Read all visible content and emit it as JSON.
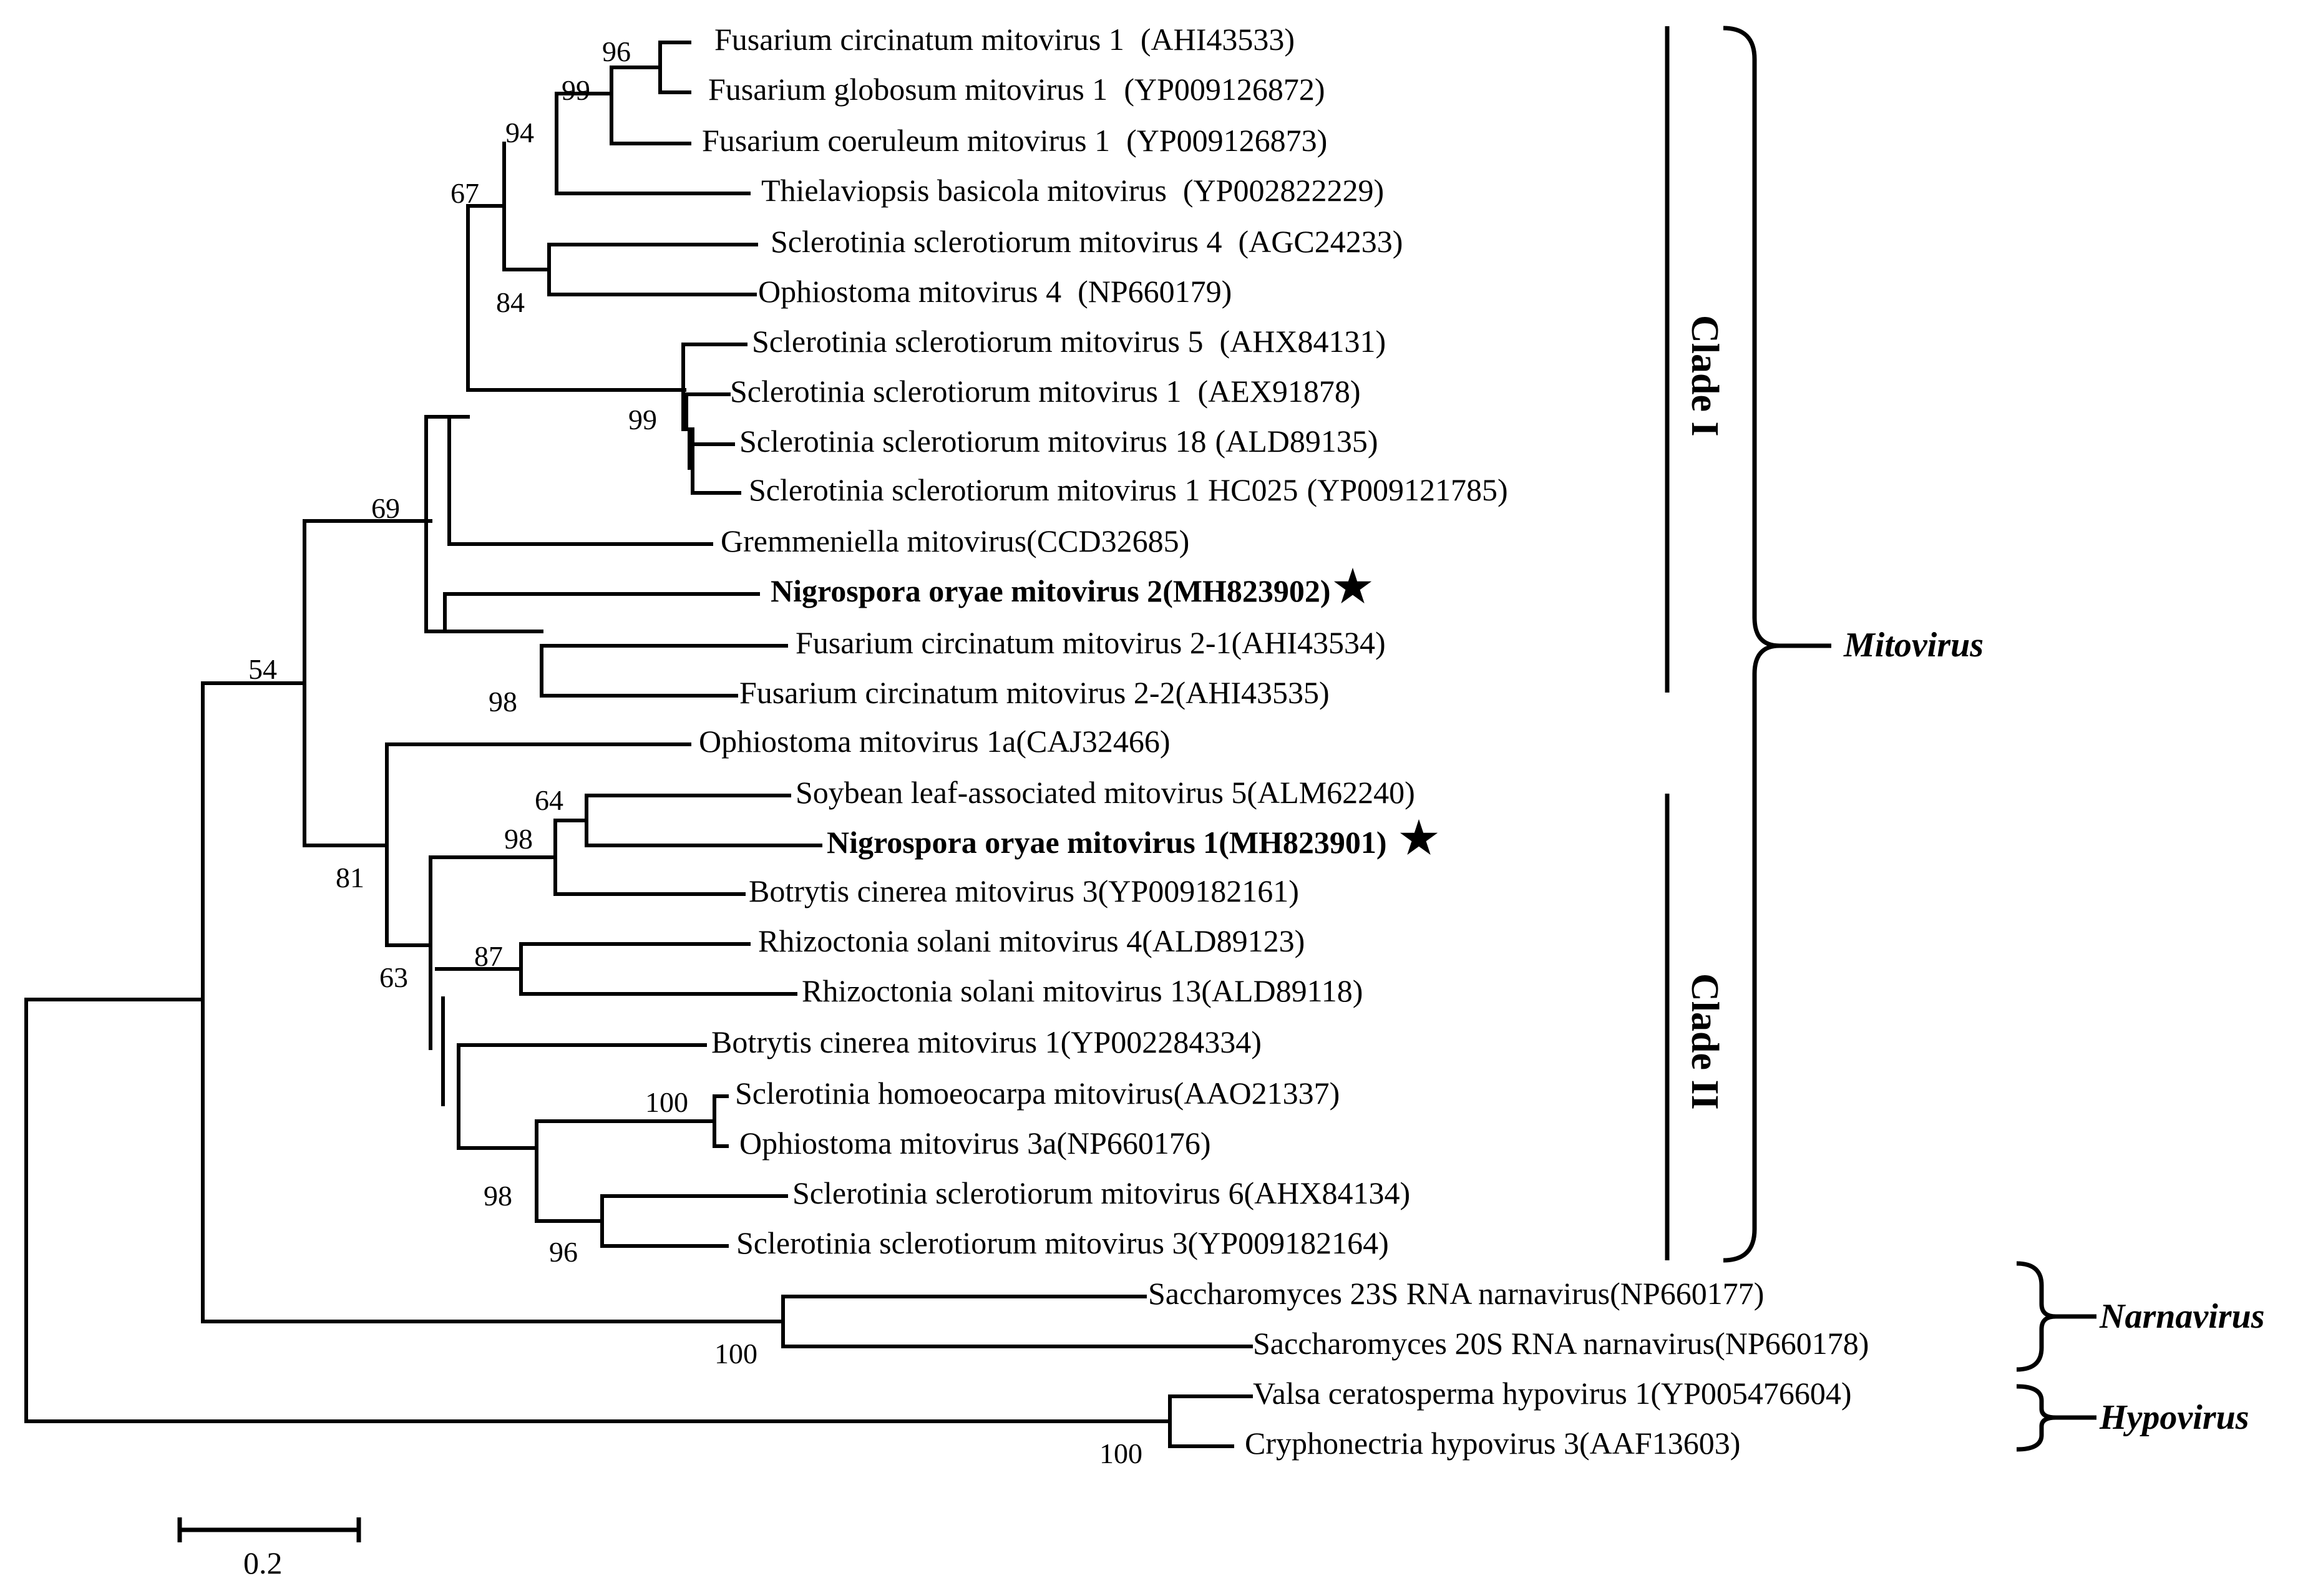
{
  "figure": {
    "leaves": {
      "fcm1": {
        "name": "Fusarium circinatum mitovirus 1",
        "acc": "(AHI43533)"
      },
      "fgm1": {
        "name": "Fusarium globosum mitovirus 1",
        "acc": "(YP009126872)"
      },
      "fcom1": {
        "name": "Fusarium coeruleum mitovirus 1",
        "acc": "(YP009126873)"
      },
      "tbm": {
        "name": "Thielaviopsis basicola mitovirus",
        "acc": "(YP002822229)"
      },
      "ssm4": {
        "name": "Sclerotinia sclerotiorum mitovirus 4",
        "acc": "(AGC24233)"
      },
      "om4": {
        "name": "Ophiostoma mitovirus 4",
        "acc": "(NP660179)"
      },
      "ssm5": {
        "name": "Sclerotinia sclerotiorum mitovirus 5",
        "acc": "(AHX84131)"
      },
      "ssm1": {
        "name": "Sclerotinia sclerotiorum mitovirus 1",
        "acc": "(AEX91878)"
      },
      "ssm18": {
        "name": "Sclerotinia sclerotiorum mitovirus 18",
        "acc": "(ALD89135)"
      },
      "ssm1hc": {
        "name": "Sclerotinia sclerotiorum mitovirus 1 HC025",
        "acc": "(YP009121785)"
      },
      "gm": {
        "name": "Gremmeniella mitovirus",
        "acc": "(CCD32685)"
      },
      "nom2": {
        "name": "Nigrospora oryae mitovirus 2",
        "acc": "(MH823902)"
      },
      "fcm21": {
        "name": "Fusarium circinatum mitovirus 2-1",
        "acc": "(AHI43534)"
      },
      "fcm22": {
        "name": "Fusarium circinatum mitovirus 2-2",
        "acc": "(AHI43535)"
      },
      "om1a": {
        "name": "Ophiostoma mitovirus 1a",
        "acc": "(CAJ32466)"
      },
      "slam5": {
        "name": "Soybean leaf-associated mitovirus 5",
        "acc": "(ALM62240)"
      },
      "nom1": {
        "name": "Nigrospora oryae mitovirus 1",
        "acc": "(MH823901)"
      },
      "bcm3": {
        "name": "Botrytis cinerea mitovirus 3",
        "acc": "(YP009182161)"
      },
      "rsm4": {
        "name": "Rhizoctonia solani mitovirus 4",
        "acc": "(ALD89123)"
      },
      "rsm13": {
        "name": "Rhizoctonia solani mitovirus 13",
        "acc": "(ALD89118)"
      },
      "bcm1": {
        "name": "Botrytis cinerea mitovirus 1",
        "acc": "(YP002284334)"
      },
      "shm": {
        "name": "Sclerotinia homoeocarpa mitovirus",
        "acc": "(AAO21337)"
      },
      "om3a": {
        "name": "Ophiostoma mitovirus 3a",
        "acc": "(NP660176)"
      },
      "ssm6": {
        "name": "Sclerotinia sclerotiorum mitovirus 6",
        "acc": "(AHX84134)"
      },
      "ssm3": {
        "name": "Sclerotinia sclerotiorum mitovirus 3",
        "acc": "(YP009182164)"
      },
      "s23s": {
        "name": "Saccharomyces 23S RNA narnavirus",
        "acc": "(NP660177)"
      },
      "s20s": {
        "name": "Saccharomyces 20S RNA narnavirus",
        "acc": "(NP660178)"
      },
      "vch1": {
        "name": "Valsa ceratosperma hypovirus 1",
        "acc": "(YP005476604)"
      },
      "ch3": {
        "name": "Cryphonectria hypovirus 3",
        "acc": "(AAF13603)"
      }
    },
    "star_symbol": "★",
    "bootstrap": {
      "b96": "96",
      "b99a": "99",
      "b94": "94",
      "b67": "67",
      "b84": "84",
      "b99b": "99",
      "b69": "69",
      "b98a": "98",
      "b54": "54",
      "b64": "64",
      "b98b": "98",
      "b81": "81",
      "b87": "87",
      "b63": "63",
      "b100a": "100",
      "b98c": "98",
      "b96b": "96",
      "b100b": "100",
      "b100c": "100"
    },
    "groups": {
      "clade1": "Clade I",
      "clade2": "Clade II",
      "mitovirus": "Mitovirus",
      "narnavirus": "Narnavirus",
      "hypovirus": "Hypovirus"
    },
    "scale_bar": {
      "label": "0.2"
    }
  }
}
